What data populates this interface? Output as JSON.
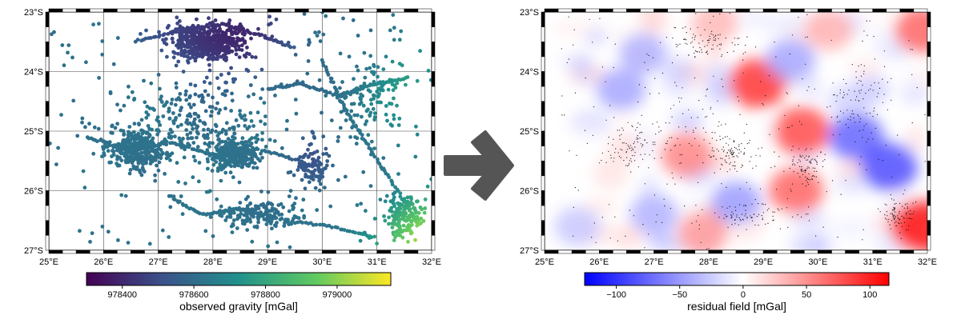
{
  "chart_data": [
    {
      "type": "scatter",
      "title": "",
      "xlabel": "",
      "ylabel": "",
      "xlim": [
        25,
        32
      ],
      "ylim": [
        -27,
        -23
      ],
      "grid": true,
      "x_ticks": [
        "25°E",
        "26°E",
        "27°E",
        "28°E",
        "29°E",
        "30°E",
        "31°E",
        "32°E"
      ],
      "y_ticks": [
        "23°S",
        "24°S",
        "25°S",
        "26°S",
        "27°S"
      ],
      "colormap": "viridis",
      "colorbar": {
        "label": "observed gravity [mGal]",
        "range": [
          978300,
          979150
        ],
        "ticks": [
          "978400",
          "978600",
          "978800",
          "979000"
        ],
        "tick_values": [
          978400,
          978600,
          978800,
          979000
        ]
      },
      "series": [
        {
          "description_points": "dense gravity stations concentrated in north-center, central grid area and southeast",
          "lines": [
            {
              "lon": [
                26.6,
                27.4,
                28.2,
                28.9,
                29.5
              ],
              "lat": [
                -23.5,
                -23.3,
                -23.2,
                -23.4,
                -23.6
              ],
              "gravity": 978420
            },
            {
              "lon": [
                25.7,
                26.4,
                27.3,
                28.0,
                28.8,
                29.6
              ],
              "lat": [
                -25.1,
                -25.3,
                -25.2,
                -25.4,
                -25.3,
                -25.5
              ],
              "gravity": 978600
            },
            {
              "lon": [
                27.2,
                27.8,
                28.5,
                29.3,
                30.2,
                31.0
              ],
              "lat": [
                -26.1,
                -26.4,
                -26.3,
                -26.5,
                -26.6,
                -26.8
              ],
              "gravity": 978560
            },
            {
              "lon": [
                29.0,
                29.6,
                30.3,
                31.0,
                31.6
              ],
              "lat": [
                -24.3,
                -24.2,
                -24.4,
                -24.2,
                -24.1
              ],
              "gravity": 978780
            },
            {
              "lon": [
                30.0,
                30.4,
                30.8,
                31.3,
                31.8
              ],
              "lat": [
                -23.8,
                -24.6,
                -25.2,
                -25.9,
                -26.6
              ],
              "gravity": 978850
            }
          ]
        }
      ]
    },
    {
      "type": "heatmap",
      "title": "",
      "xlabel": "",
      "ylabel": "",
      "xlim": [
        25,
        32
      ],
      "ylim": [
        -27,
        -23
      ],
      "grid": false,
      "x_ticks": [
        "25°E",
        "26°E",
        "27°E",
        "28°E",
        "29°E",
        "30°E",
        "31°E",
        "32°E"
      ],
      "y_ticks": [
        "23°S",
        "24°S",
        "25°S",
        "26°S",
        "27°S"
      ],
      "colormap": "blue-white-red",
      "colorbar": {
        "label": "residual field [mGal]",
        "range": [
          -125,
          115
        ],
        "ticks": [
          "−100",
          "−50",
          "0",
          "50",
          "100"
        ],
        "tick_values": [
          -100,
          -50,
          0,
          50,
          100
        ]
      },
      "blobs": [
        {
          "lon": 27.6,
          "lat": -25.4,
          "value": 55
        },
        {
          "lon": 28.9,
          "lat": -24.2,
          "value": 90
        },
        {
          "lon": 29.7,
          "lat": -25.0,
          "value": 80
        },
        {
          "lon": 29.6,
          "lat": -26.0,
          "value": 70
        },
        {
          "lon": 31.9,
          "lat": -23.3,
          "value": 70
        },
        {
          "lon": 31.9,
          "lat": -26.6,
          "value": 110
        },
        {
          "lon": 27.9,
          "lat": -26.7,
          "value": 45
        },
        {
          "lon": 30.2,
          "lat": -23.3,
          "value": 35
        },
        {
          "lon": 28.1,
          "lat": -23.2,
          "value": 30
        },
        {
          "lon": 30.7,
          "lat": -25.1,
          "value": -70
        },
        {
          "lon": 31.3,
          "lat": -25.6,
          "value": -80
        },
        {
          "lon": 28.5,
          "lat": -26.2,
          "value": -45
        },
        {
          "lon": 26.4,
          "lat": -24.3,
          "value": -40
        },
        {
          "lon": 29.5,
          "lat": -23.8,
          "value": -40
        },
        {
          "lon": 27.0,
          "lat": -26.4,
          "value": -35
        },
        {
          "lon": 25.6,
          "lat": -26.6,
          "value": -25
        },
        {
          "lon": 26.8,
          "lat": -23.7,
          "value": -35
        }
      ]
    }
  ],
  "arrow_icon": "right-arrow-icon"
}
